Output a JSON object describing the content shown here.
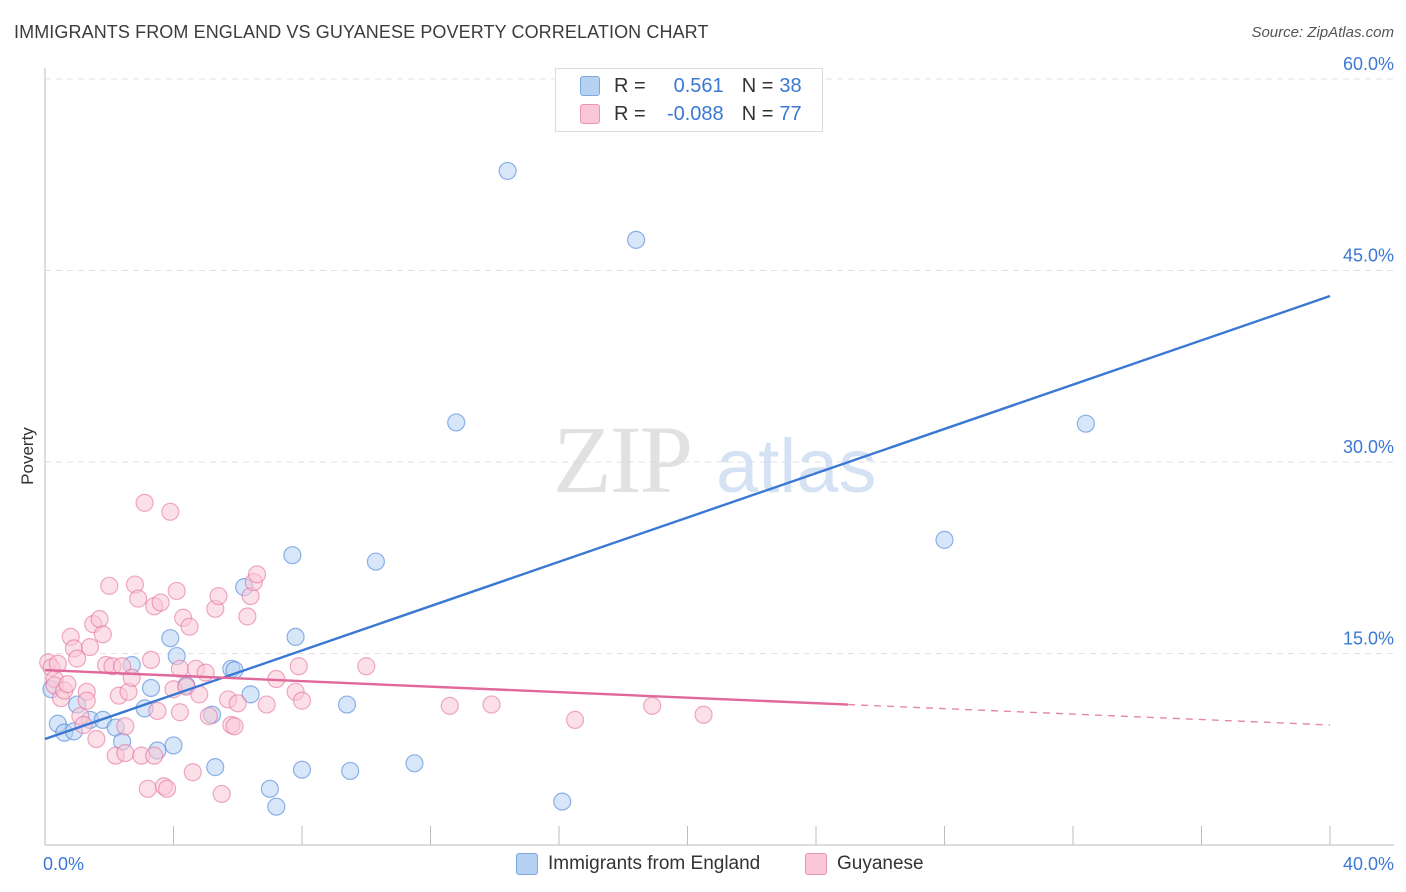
{
  "chart_data": {
    "type": "scatter",
    "title": "IMMIGRANTS FROM ENGLAND VS GUYANESE POVERTY CORRELATION CHART",
    "source": "Source: ZipAtlas.com",
    "xlabel": "",
    "ylabel": "Poverty",
    "xlim": [
      0,
      40
    ],
    "ylim": [
      0,
      60
    ],
    "x_tick_labels": [
      "0.0%",
      "40.0%"
    ],
    "y_tick_labels": [
      {
        "value": 15,
        "label": "15.0%"
      },
      {
        "value": 30,
        "label": "30.0%"
      },
      {
        "value": 45,
        "label": "45.0%"
      },
      {
        "value": 60,
        "label": "60.0%"
      }
    ],
    "grid": true,
    "legend_position": "top-center",
    "legend": {
      "r_label": "R =",
      "n_label": "N =",
      "entries": [
        {
          "name": "Immigrants from England",
          "r": "0.561",
          "n": "38"
        },
        {
          "name": "Guyanese",
          "r": "-0.088",
          "n": "77"
        }
      ]
    },
    "series": [
      {
        "name": "Immigrants from England",
        "color": "#3a78d4",
        "fill": "#b7d1f2",
        "trend": {
          "x": [
            0,
            40
          ],
          "y": [
            8.3,
            43.0
          ],
          "dashed_from": null
        },
        "points": [
          [
            0.4,
            9.5
          ],
          [
            0.6,
            8.8
          ],
          [
            0.9,
            8.9
          ],
          [
            1.0,
            11.0
          ],
          [
            1.4,
            9.8
          ],
          [
            1.8,
            9.8
          ],
          [
            2.2,
            9.2
          ],
          [
            2.4,
            8.1
          ],
          [
            2.7,
            14.1
          ],
          [
            3.1,
            10.7
          ],
          [
            3.3,
            12.3
          ],
          [
            3.5,
            7.4
          ],
          [
            3.9,
            16.2
          ],
          [
            4.0,
            7.8
          ],
          [
            4.1,
            14.8
          ],
          [
            4.4,
            12.5
          ],
          [
            5.2,
            10.2
          ],
          [
            5.3,
            6.1
          ],
          [
            5.8,
            13.8
          ],
          [
            5.9,
            13.7
          ],
          [
            6.2,
            20.2
          ],
          [
            6.4,
            11.8
          ],
          [
            7.0,
            4.4
          ],
          [
            7.2,
            3.0
          ],
          [
            7.7,
            22.7
          ],
          [
            7.8,
            16.3
          ],
          [
            8.0,
            5.9
          ],
          [
            9.4,
            11.0
          ],
          [
            9.5,
            5.8
          ],
          [
            10.3,
            22.2
          ],
          [
            11.5,
            6.4
          ],
          [
            12.8,
            33.1
          ],
          [
            14.4,
            52.8
          ],
          [
            16.1,
            3.4
          ],
          [
            18.4,
            47.4
          ],
          [
            28.0,
            23.9
          ],
          [
            32.4,
            33.0
          ],
          [
            0.2,
            12.2
          ]
        ]
      },
      {
        "name": "Guyanese",
        "color": "#e0689a",
        "fill": "#f9c7d6",
        "trend": {
          "x": [
            0,
            25
          ],
          "y": [
            13.7,
            11.0
          ],
          "dashed_from": 25,
          "dashed_to": {
            "x": 40,
            "y": 9.4
          }
        },
        "points": [
          [
            0.1,
            14.3
          ],
          [
            0.2,
            13.9
          ],
          [
            0.3,
            13.0
          ],
          [
            0.3,
            12.5
          ],
          [
            0.5,
            11.5
          ],
          [
            0.6,
            12.1
          ],
          [
            0.7,
            12.6
          ],
          [
            0.8,
            16.3
          ],
          [
            0.9,
            15.4
          ],
          [
            1.0,
            14.6
          ],
          [
            1.1,
            10.1
          ],
          [
            1.3,
            12.0
          ],
          [
            1.3,
            11.3
          ],
          [
            1.4,
            15.5
          ],
          [
            1.5,
            17.3
          ],
          [
            1.6,
            8.3
          ],
          [
            1.7,
            17.7
          ],
          [
            1.8,
            16.5
          ],
          [
            1.9,
            14.1
          ],
          [
            2.0,
            20.3
          ],
          [
            2.1,
            14.0
          ],
          [
            2.2,
            7.0
          ],
          [
            2.3,
            11.7
          ],
          [
            2.4,
            14.0
          ],
          [
            2.5,
            9.3
          ],
          [
            2.5,
            7.2
          ],
          [
            2.6,
            12.0
          ],
          [
            2.7,
            13.1
          ],
          [
            2.8,
            20.4
          ],
          [
            2.9,
            19.3
          ],
          [
            3.0,
            7.0
          ],
          [
            3.1,
            26.8
          ],
          [
            3.2,
            4.4
          ],
          [
            3.3,
            14.5
          ],
          [
            3.4,
            18.7
          ],
          [
            3.4,
            7.0
          ],
          [
            3.5,
            10.5
          ],
          [
            3.6,
            19.0
          ],
          [
            3.7,
            4.6
          ],
          [
            3.8,
            4.4
          ],
          [
            3.9,
            26.1
          ],
          [
            4.0,
            12.2
          ],
          [
            4.1,
            19.9
          ],
          [
            4.2,
            13.8
          ],
          [
            4.2,
            10.4
          ],
          [
            4.3,
            17.8
          ],
          [
            4.4,
            12.4
          ],
          [
            4.5,
            17.1
          ],
          [
            4.6,
            5.7
          ],
          [
            4.7,
            13.8
          ],
          [
            4.8,
            11.8
          ],
          [
            5.0,
            13.5
          ],
          [
            5.1,
            10.1
          ],
          [
            5.3,
            18.5
          ],
          [
            5.4,
            19.5
          ],
          [
            5.5,
            4.0
          ],
          [
            5.7,
            11.4
          ],
          [
            5.8,
            9.4
          ],
          [
            5.9,
            9.3
          ],
          [
            6.0,
            11.1
          ],
          [
            6.3,
            17.9
          ],
          [
            6.4,
            19.5
          ],
          [
            6.5,
            20.6
          ],
          [
            6.6,
            21.2
          ],
          [
            6.9,
            11.0
          ],
          [
            7.2,
            13.0
          ],
          [
            7.8,
            12.0
          ],
          [
            7.9,
            14.0
          ],
          [
            8.0,
            11.3
          ],
          [
            10.0,
            14.0
          ],
          [
            12.6,
            10.9
          ],
          [
            13.9,
            11.0
          ],
          [
            16.5,
            9.8
          ],
          [
            18.9,
            10.9
          ],
          [
            20.5,
            10.2
          ],
          [
            0.4,
            14.2
          ],
          [
            1.2,
            9.4
          ]
        ]
      }
    ]
  },
  "watermark": {
    "part1": "ZIP",
    "part2": "atlas"
  }
}
